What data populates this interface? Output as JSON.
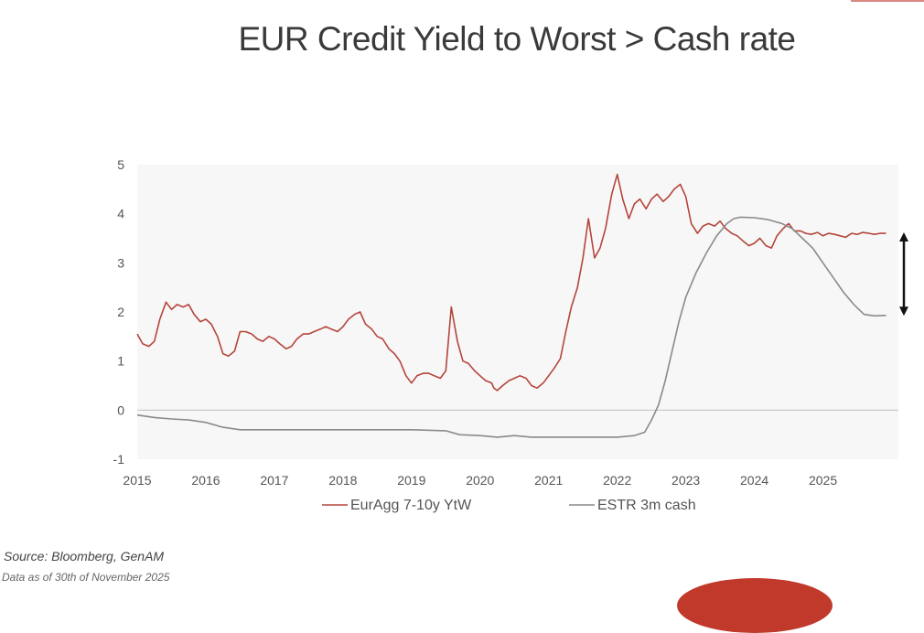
{
  "page": {
    "title": "EUR Credit Yield to Worst > Cash rate",
    "source": "Source: Bloomberg, GenAM",
    "as_of": "Data as of 30th of November 2025"
  },
  "chart_data": {
    "type": "line",
    "title": "",
    "xlabel": "",
    "ylabel": "",
    "xlim": [
      2015.0,
      2026.1
    ],
    "ylim": [
      -1,
      5
    ],
    "yticks": [
      -1,
      0,
      1,
      2,
      3,
      4,
      5
    ],
    "xticks": [
      "2015",
      "2016",
      "2017",
      "2018",
      "2019",
      "2020",
      "2021",
      "2022",
      "2023",
      "2024",
      "2025"
    ],
    "grid": false,
    "legend": "bottom",
    "series": [
      {
        "name": "EurAgg 7-10y YtW",
        "color": "#b5453b",
        "x": [
          2015.0,
          2015.08,
          2015.17,
          2015.25,
          2015.33,
          2015.42,
          2015.5,
          2015.58,
          2015.67,
          2015.75,
          2015.83,
          2015.92,
          2016.0,
          2016.08,
          2016.17,
          2016.25,
          2016.33,
          2016.42,
          2016.5,
          2016.58,
          2016.67,
          2016.75,
          2016.83,
          2016.92,
          2017.0,
          2017.08,
          2017.17,
          2017.25,
          2017.33,
          2017.42,
          2017.5,
          2017.58,
          2017.67,
          2017.75,
          2017.83,
          2017.92,
          2018.0,
          2018.08,
          2018.17,
          2018.25,
          2018.33,
          2018.42,
          2018.5,
          2018.58,
          2018.67,
          2018.75,
          2018.83,
          2018.92,
          2019.0,
          2019.08,
          2019.17,
          2019.25,
          2019.33,
          2019.42,
          2019.5,
          2019.58,
          2019.67,
          2019.75,
          2019.83,
          2019.92,
          2020.0,
          2020.08,
          2020.17,
          2020.2,
          2020.25,
          2020.33,
          2020.42,
          2020.5,
          2020.58,
          2020.67,
          2020.75,
          2020.83,
          2020.92,
          2021.0,
          2021.08,
          2021.17,
          2021.25,
          2021.33,
          2021.42,
          2021.5,
          2021.58,
          2021.67,
          2021.75,
          2021.83,
          2021.92,
          2022.0,
          2022.08,
          2022.17,
          2022.25,
          2022.33,
          2022.42,
          2022.5,
          2022.58,
          2022.67,
          2022.75,
          2022.83,
          2022.92,
          2023.0,
          2023.08,
          2023.17,
          2023.25,
          2023.33,
          2023.42,
          2023.5,
          2023.58,
          2023.67,
          2023.75,
          2023.83,
          2023.92,
          2024.0,
          2024.08,
          2024.17,
          2024.25,
          2024.33,
          2024.42,
          2024.5,
          2024.58,
          2024.67,
          2024.75,
          2024.83,
          2024.92,
          2025.0,
          2025.08,
          2025.17,
          2025.25,
          2025.33,
          2025.42,
          2025.5,
          2025.58,
          2025.67,
          2025.75,
          2025.83,
          2025.92
        ],
        "y": [
          1.55,
          1.35,
          1.3,
          1.4,
          1.85,
          2.2,
          2.05,
          2.15,
          2.1,
          2.15,
          1.95,
          1.8,
          1.85,
          1.75,
          1.5,
          1.15,
          1.1,
          1.2,
          1.6,
          1.6,
          1.55,
          1.45,
          1.4,
          1.5,
          1.45,
          1.35,
          1.25,
          1.3,
          1.45,
          1.55,
          1.55,
          1.6,
          1.65,
          1.7,
          1.65,
          1.6,
          1.7,
          1.85,
          1.95,
          2.0,
          1.75,
          1.65,
          1.5,
          1.45,
          1.25,
          1.15,
          1.0,
          0.7,
          0.55,
          0.7,
          0.75,
          0.75,
          0.7,
          0.65,
          0.8,
          2.1,
          1.4,
          1.0,
          0.95,
          0.8,
          0.7,
          0.6,
          0.55,
          0.45,
          0.4,
          0.5,
          0.6,
          0.65,
          0.7,
          0.65,
          0.5,
          0.45,
          0.55,
          0.7,
          0.85,
          1.05,
          1.6,
          2.1,
          2.5,
          3.1,
          3.9,
          3.1,
          3.3,
          3.7,
          4.4,
          4.8,
          4.3,
          3.9,
          4.2,
          4.3,
          4.1,
          4.3,
          4.4,
          4.25,
          4.35,
          4.5,
          4.6,
          4.35,
          3.8,
          3.6,
          3.75,
          3.8,
          3.75,
          3.85,
          3.7,
          3.6,
          3.55,
          3.45,
          3.35,
          3.4,
          3.5,
          3.35,
          3.3,
          3.55,
          3.7,
          3.8,
          3.65,
          3.65,
          3.6,
          3.58,
          3.62,
          3.55,
          3.6,
          3.58,
          3.55,
          3.52,
          3.6,
          3.58,
          3.62,
          3.6,
          3.58,
          3.6,
          3.6
        ]
      },
      {
        "name": "ESTR 3m cash",
        "color": "#8a8a8a",
        "x": [
          2015.0,
          2015.25,
          2015.5,
          2015.75,
          2016.0,
          2016.25,
          2016.5,
          2016.75,
          2017.0,
          2017.5,
          2018.0,
          2018.5,
          2019.0,
          2019.5,
          2019.7,
          2020.0,
          2020.25,
          2020.5,
          2020.75,
          2021.0,
          2021.5,
          2022.0,
          2022.25,
          2022.4,
          2022.5,
          2022.6,
          2022.7,
          2022.8,
          2022.9,
          2023.0,
          2023.15,
          2023.3,
          2023.45,
          2023.6,
          2023.7,
          2023.8,
          2024.0,
          2024.2,
          2024.4,
          2024.55,
          2024.7,
          2024.85,
          2025.0,
          2025.15,
          2025.3,
          2025.45,
          2025.6,
          2025.75,
          2025.92
        ],
        "y": [
          -0.1,
          -0.15,
          -0.18,
          -0.2,
          -0.25,
          -0.35,
          -0.4,
          -0.4,
          -0.4,
          -0.4,
          -0.4,
          -0.4,
          -0.4,
          -0.42,
          -0.5,
          -0.52,
          -0.55,
          -0.52,
          -0.55,
          -0.55,
          -0.55,
          -0.55,
          -0.52,
          -0.45,
          -0.2,
          0.1,
          0.6,
          1.2,
          1.8,
          2.3,
          2.8,
          3.2,
          3.55,
          3.8,
          3.9,
          3.93,
          3.92,
          3.88,
          3.8,
          3.7,
          3.5,
          3.3,
          3.0,
          2.7,
          2.4,
          2.15,
          1.95,
          1.92,
          1.93
        ]
      }
    ],
    "annotation": "double-arrow spread marker between ESTR and YtW on right"
  }
}
